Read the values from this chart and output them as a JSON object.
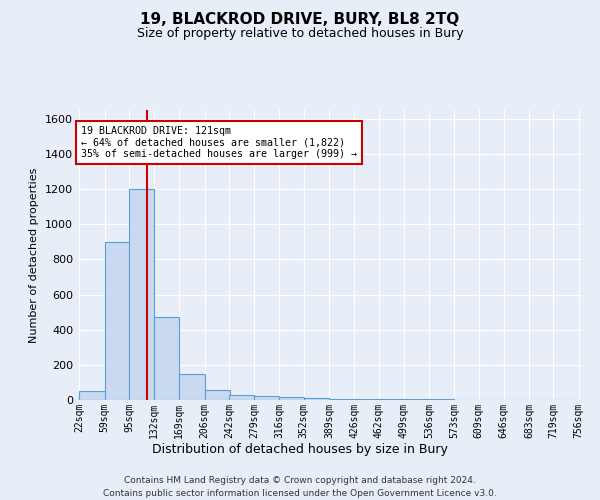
{
  "title": "19, BLACKROD DRIVE, BURY, BL8 2TQ",
  "subtitle": "Size of property relative to detached houses in Bury",
  "xlabel": "Distribution of detached houses by size in Bury",
  "ylabel": "Number of detached properties",
  "footnote1": "Contains HM Land Registry data © Crown copyright and database right 2024.",
  "footnote2": "Contains public sector information licensed under the Open Government Licence v3.0.",
  "bin_edges": [
    22,
    59,
    95,
    132,
    169,
    206,
    242,
    279,
    316,
    352,
    389,
    426,
    462,
    499,
    536,
    573,
    609,
    646,
    683,
    719,
    756
  ],
  "bar_heights": [
    50,
    900,
    1200,
    470,
    150,
    55,
    30,
    20,
    15,
    10,
    8,
    5,
    4,
    3,
    3,
    2,
    2,
    1,
    1,
    1
  ],
  "bar_color": "#c8d9f0",
  "bar_edge_color": "#5a9fd4",
  "vline_x": 121,
  "vline_color": "#cc0000",
  "ylim": [
    0,
    1650
  ],
  "yticks": [
    0,
    200,
    400,
    600,
    800,
    1000,
    1200,
    1400,
    1600
  ],
  "annotation_line1": "19 BLACKROD DRIVE: 121sqm",
  "annotation_line2": "← 64% of detached houses are smaller (1,822)",
  "annotation_line3": "35% of semi-detached houses are larger (999) →",
  "annotation_box_color": "#ffffff",
  "annotation_box_edge_color": "#cc0000",
  "background_color": "#e8eef8",
  "grid_color": "#ffffff",
  "plot_bg_color": "#e8eef8"
}
